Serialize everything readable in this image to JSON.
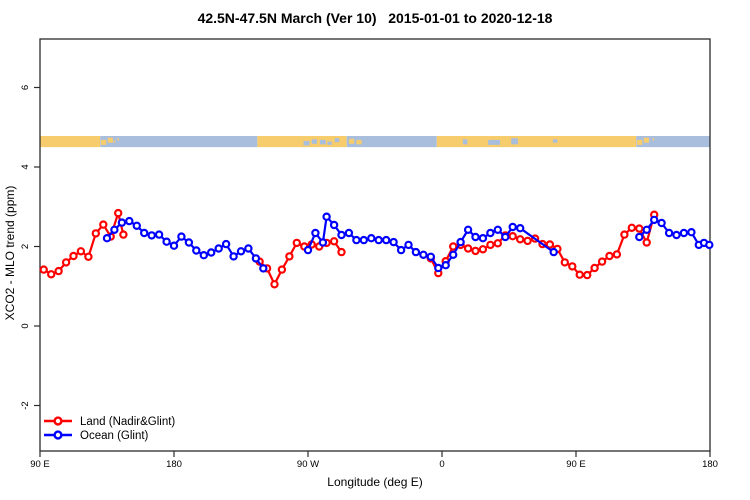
{
  "title": "42.5N-47.5N March (Ver 10)   2015-01-01 to 2020-12-18",
  "colors": {
    "land_series": "#ff0000",
    "ocean_series": "#0000ff",
    "map_land": "#f6cc6d",
    "map_ocean": "#a9bedc",
    "axis": "#2b2b2b",
    "text": "#000000"
  },
  "chart_data": {
    "type": "line",
    "title": "42.5N-47.5N March (Ver 10)   2015-01-01 to 2020-12-18",
    "xlabel": "Longitude (deg E)",
    "ylabel": "XCO2 - MLO trend (ppm)",
    "xlim_deg_travel": [
      0,
      450
    ],
    "ylim": [
      -3.1,
      7.2
    ],
    "grid": false,
    "x_ticks": [
      {
        "pos": 0,
        "label": "90 E"
      },
      {
        "pos": 90,
        "label": "180"
      },
      {
        "pos": 180,
        "label": "90 W"
      },
      {
        "pos": 270,
        "label": "0"
      },
      {
        "pos": 360,
        "label": "90 E"
      },
      {
        "pos": 450,
        "label": "180"
      }
    ],
    "y_ticks": [
      {
        "value": -2,
        "label": "-2"
      },
      {
        "value": 0,
        "label": "0"
      },
      {
        "value": 2,
        "label": "2"
      },
      {
        "value": 4,
        "label": "4"
      },
      {
        "value": 6,
        "label": "6"
      }
    ],
    "legend": {
      "position": "bottom-left-inside",
      "entries": [
        {
          "name": "Land (Nadir&Glint)",
          "color": "#ff0000"
        },
        {
          "name": "Ocean (Glint)",
          "color": "#0000ff"
        }
      ]
    },
    "map_strip": {
      "description": "world coastline band at latitude 42.5N-47.5N drawn across plot near y=4.6 ppm",
      "top_ppm": 4.78,
      "bottom_ppm": 4.5,
      "land_color": "#f6cc6d",
      "ocean_color": "#a9bedc",
      "base_segments": [
        {
          "t0": 0,
          "t1": 40.5,
          "type": "land"
        },
        {
          "t0": 40.5,
          "t1": 146,
          "type": "ocean"
        },
        {
          "t0": 146,
          "t1": 206,
          "type": "land"
        },
        {
          "t0": 206,
          "t1": 266.5,
          "type": "ocean"
        },
        {
          "t0": 266.5,
          "t1": 400.5,
          "type": "land"
        },
        {
          "t0": 400.5,
          "t1": 450,
          "type": "ocean"
        }
      ],
      "specks": [
        {
          "t0": 41,
          "t1": 44.5,
          "type": "land",
          "f0": 0.35,
          "f1": 0.8
        },
        {
          "t0": 45.5,
          "t1": 49,
          "type": "land",
          "f0": 0.15,
          "f1": 0.6
        },
        {
          "t0": 49.5,
          "t1": 50.5,
          "type": "land",
          "f0": 0.4,
          "f1": 0.6
        },
        {
          "t0": 52,
          "t1": 53,
          "type": "land",
          "f0": 0.2,
          "f1": 0.4
        },
        {
          "t0": 177,
          "t1": 181,
          "type": "ocean",
          "f0": 0.45,
          "f1": 0.85
        },
        {
          "t0": 182.5,
          "t1": 186,
          "type": "ocean",
          "f0": 0.3,
          "f1": 0.7
        },
        {
          "t0": 188,
          "t1": 192,
          "type": "ocean",
          "f0": 0.35,
          "f1": 0.75
        },
        {
          "t0": 193,
          "t1": 196,
          "type": "ocean",
          "f0": 0.5,
          "f1": 0.8
        },
        {
          "t0": 198,
          "t1": 201,
          "type": "ocean",
          "f0": 0.2,
          "f1": 0.55
        },
        {
          "t0": 207.5,
          "t1": 211,
          "type": "land",
          "f0": 0.25,
          "f1": 0.7
        },
        {
          "t0": 212.5,
          "t1": 216,
          "type": "land",
          "f0": 0.35,
          "f1": 0.75
        },
        {
          "t0": 284,
          "t1": 287,
          "type": "ocean",
          "f0": 0.3,
          "f1": 0.75
        },
        {
          "t0": 301,
          "t1": 309,
          "type": "ocean",
          "f0": 0.35,
          "f1": 0.8
        },
        {
          "t0": 316.5,
          "t1": 321,
          "type": "ocean",
          "f0": 0.2,
          "f1": 0.75
        },
        {
          "t0": 344.5,
          "t1": 347.5,
          "type": "ocean",
          "f0": 0.3,
          "f1": 0.6
        },
        {
          "t0": 401,
          "t1": 404.5,
          "type": "land",
          "f0": 0.35,
          "f1": 0.8
        },
        {
          "t0": 405.5,
          "t1": 409,
          "type": "land",
          "f0": 0.15,
          "f1": 0.6
        },
        {
          "t0": 411.5,
          "t1": 412.5,
          "type": "land",
          "f0": 0.2,
          "f1": 0.4
        }
      ]
    },
    "series": [
      {
        "name": "Land (Nadir&Glint)",
        "color": "#ff0000",
        "marker": "open-circle",
        "segments": [
          [
            [
              2.5,
              1.42
            ],
            [
              7.5,
              1.3
            ],
            [
              12.5,
              1.38
            ],
            [
              17.5,
              1.6
            ],
            [
              22.5,
              1.76
            ],
            [
              27.5,
              1.88
            ],
            [
              32.5,
              1.74
            ],
            [
              37.5,
              2.33
            ],
            [
              42.5,
              2.55
            ],
            [
              47.5,
              2.25
            ],
            [
              52.5,
              2.84
            ],
            [
              56,
              2.3
            ]
          ],
          [
            [
              147.5,
              1.62
            ],
            [
              152.5,
              1.45
            ],
            [
              157.5,
              1.05
            ],
            [
              162.5,
              1.42
            ],
            [
              167.5,
              1.75
            ],
            [
              172.5,
              2.09
            ],
            [
              177.5,
              2.0
            ],
            [
              182.5,
              2.05
            ],
            [
              187.5,
              2.0
            ],
            [
              192.5,
              2.09
            ],
            [
              197.5,
              2.13
            ],
            [
              202.5,
              1.86
            ]
          ],
          [
            [
              262.5,
              1.7
            ],
            [
              267.5,
              1.33
            ],
            [
              272.5,
              1.63
            ],
            [
              277.5,
              2.0
            ],
            [
              282.5,
              2.04
            ],
            [
              287.5,
              1.95
            ],
            [
              292.5,
              1.89
            ],
            [
              297.5,
              1.93
            ],
            [
              302.5,
              2.04
            ],
            [
              307.5,
              2.08
            ],
            [
              312.5,
              2.28
            ],
            [
              317.5,
              2.26
            ],
            [
              322.5,
              2.18
            ],
            [
              327.5,
              2.14
            ],
            [
              332.5,
              2.2
            ],
            [
              337.5,
              2.06
            ],
            [
              342.5,
              2.05
            ],
            [
              347.5,
              1.94
            ],
            [
              352.5,
              1.6
            ],
            [
              357.5,
              1.5
            ],
            [
              362.5,
              1.29
            ],
            [
              367.5,
              1.28
            ],
            [
              372.5,
              1.46
            ],
            [
              377.5,
              1.62
            ],
            [
              382.5,
              1.76
            ],
            [
              387.5,
              1.8
            ],
            [
              392.5,
              2.3
            ],
            [
              397.5,
              2.47
            ],
            [
              402.5,
              2.45
            ],
            [
              407.5,
              2.1
            ],
            [
              412.5,
              2.8
            ]
          ]
        ]
      },
      {
        "name": "Ocean (Glint)",
        "color": "#0000ff",
        "marker": "open-circle",
        "segments": [
          [
            [
              45,
              2.21
            ],
            [
              50,
              2.42
            ],
            [
              55,
              2.6
            ],
            [
              60,
              2.64
            ],
            [
              65,
              2.52
            ],
            [
              70,
              2.34
            ],
            [
              75,
              2.28
            ],
            [
              80,
              2.3
            ],
            [
              85,
              2.12
            ],
            [
              90,
              2.02
            ],
            [
              95,
              2.25
            ],
            [
              100,
              2.1
            ],
            [
              105,
              1.9
            ],
            [
              110,
              1.78
            ],
            [
              115,
              1.85
            ],
            [
              120,
              1.95
            ],
            [
              125,
              2.06
            ],
            [
              130,
              1.75
            ],
            [
              135,
              1.88
            ],
            [
              140,
              1.95
            ],
            [
              145,
              1.7
            ],
            [
              150,
              1.45
            ]
          ],
          [
            [
              180,
              1.91
            ],
            [
              185,
              2.34
            ],
            [
              190,
              2.1
            ],
            [
              192.5,
              2.75
            ],
            [
              197.5,
              2.54
            ],
            [
              202.5,
              2.29
            ],
            [
              207.5,
              2.34
            ],
            [
              212.5,
              2.16
            ],
            [
              217.5,
              2.16
            ],
            [
              222.5,
              2.21
            ],
            [
              227.5,
              2.16
            ],
            [
              232.5,
              2.16
            ],
            [
              237.5,
              2.11
            ],
            [
              242.5,
              1.91
            ],
            [
              247.5,
              2.04
            ],
            [
              252.5,
              1.86
            ],
            [
              257.5,
              1.79
            ],
            [
              262.5,
              1.74
            ],
            [
              267.5,
              1.46
            ],
            [
              272.5,
              1.53
            ],
            [
              277.5,
              1.79
            ],
            [
              282.5,
              2.11
            ],
            [
              287.5,
              2.42
            ],
            [
              292.5,
              2.24
            ],
            [
              297.5,
              2.21
            ],
            [
              302.5,
              2.34
            ],
            [
              307.5,
              2.42
            ],
            [
              312.5,
              2.24
            ],
            [
              317.5,
              2.49
            ],
            [
              322.5,
              2.46
            ],
            [
              345,
              1.86
            ]
          ],
          [
            [
              402.5,
              2.24
            ],
            [
              407.5,
              2.42
            ],
            [
              412.5,
              2.67
            ],
            [
              417.5,
              2.59
            ],
            [
              422.5,
              2.34
            ],
            [
              427.5,
              2.29
            ],
            [
              432.5,
              2.34
            ],
            [
              437.5,
              2.36
            ],
            [
              442.5,
              2.04
            ],
            [
              446,
              2.09
            ],
            [
              449.5,
              2.04
            ]
          ]
        ]
      }
    ]
  }
}
